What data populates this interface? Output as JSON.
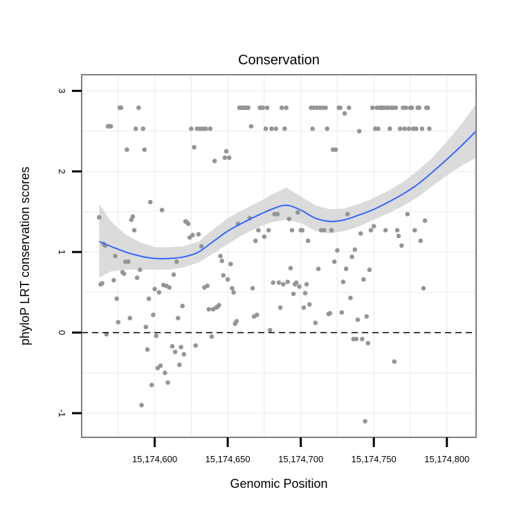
{
  "chart_data": {
    "type": "scatter",
    "title": "Conservation",
    "xlabel": "Genomic Position",
    "ylabel": "phyloP LRT conservation scores",
    "xlim": [
      15174550,
      15174820
    ],
    "ylim": [
      -1.3,
      3.2
    ],
    "x_ticks": [
      15174600,
      15174650,
      15174700,
      15174750,
      15174800
    ],
    "x_tick_labels": [
      "15,174,600",
      "15,174,650",
      "15,174,700",
      "15,174,750",
      "15,174,800"
    ],
    "y_ticks": [
      -1,
      0,
      1,
      2,
      3
    ],
    "y_tick_labels": [
      "-1",
      "0",
      "1",
      "2",
      "3"
    ],
    "reference_line": {
      "y": 0,
      "style": "dashed"
    },
    "colors": {
      "points": "#959595",
      "smooth_line": "#3366ff",
      "ribbon": "#d9d9d9",
      "frame": "#7f7f7f",
      "grid": "#f0f0f0"
    },
    "points": [
      [
        15174562,
        1.43
      ],
      [
        15174563,
        0.6
      ],
      [
        15174564,
        0.61
      ],
      [
        15174565,
        1.1
      ],
      [
        15174566,
        1.08
      ],
      [
        15174567,
        -0.02
      ],
      [
        15174568,
        2.56
      ],
      [
        15174569,
        2.56
      ],
      [
        15174570,
        2.56
      ],
      [
        15174572,
        0.65
      ],
      [
        15174573,
        0.95
      ],
      [
        15174574,
        0.42
      ],
      [
        15174575,
        0.13
      ],
      [
        15174576,
        2.79
      ],
      [
        15174577,
        2.79
      ],
      [
        15174578,
        0.75
      ],
      [
        15174579,
        0.73
      ],
      [
        15174580,
        0.88
      ],
      [
        15174581,
        2.27
      ],
      [
        15174582,
        0.88
      ],
      [
        15174583,
        0.18
      ],
      [
        15174584,
        1.4
      ],
      [
        15174585,
        1.44
      ],
      [
        15174586,
        1.27
      ],
      [
        15174587,
        2.53
      ],
      [
        15174588,
        0.68
      ],
      [
        15174589,
        2.79
      ],
      [
        15174590,
        0.78
      ],
      [
        15174591,
        -0.9
      ],
      [
        15174592,
        2.53
      ],
      [
        15174593,
        2.27
      ],
      [
        15174594,
        0.07
      ],
      [
        15174595,
        -0.21
      ],
      [
        15174596,
        0.42
      ],
      [
        15174597,
        1.62
      ],
      [
        15174598,
        -0.65
      ],
      [
        15174599,
        0.22
      ],
      [
        15174600,
        0.54
      ],
      [
        15174601,
        -0.04
      ],
      [
        15174602,
        -0.44
      ],
      [
        15174603,
        0.5
      ],
      [
        15174604,
        -0.41
      ],
      [
        15174605,
        1.52
      ],
      [
        15174606,
        0.59
      ],
      [
        15174607,
        -0.5
      ],
      [
        15174608,
        0.58
      ],
      [
        15174609,
        -0.62
      ],
      [
        15174610,
        0.56
      ],
      [
        15174612,
        -0.17
      ],
      [
        15174613,
        0.72
      ],
      [
        15174614,
        -0.24
      ],
      [
        15174615,
        0.88
      ],
      [
        15174616,
        0.18
      ],
      [
        15174617,
        -0.4
      ],
      [
        15174618,
        -0.18
      ],
      [
        15174619,
        0.33
      ],
      [
        15174620,
        -0.27
      ],
      [
        15174621,
        1.38
      ],
      [
        15174622,
        1.37
      ],
      [
        15174623,
        1.35
      ],
      [
        15174624,
        1.18
      ],
      [
        15174625,
        2.53
      ],
      [
        15174626,
        1.21
      ],
      [
        15174627,
        2.3
      ],
      [
        15174628,
        -0.16
      ],
      [
        15174629,
        2.53
      ],
      [
        15174630,
        1.22
      ],
      [
        15174631,
        2.53
      ],
      [
        15174632,
        1.07
      ],
      [
        15174633,
        2.53
      ],
      [
        15174634,
        0.56
      ],
      [
        15174635,
        2.53
      ],
      [
        15174636,
        0.58
      ],
      [
        15174637,
        0.29
      ],
      [
        15174638,
        2.53
      ],
      [
        15174639,
        -0.05
      ],
      [
        15174640,
        0.29
      ],
      [
        15174641,
        2.13
      ],
      [
        15174642,
        0.31
      ],
      [
        15174643,
        0.32
      ],
      [
        15174644,
        0.34
      ],
      [
        15174645,
        0.95
      ],
      [
        15174646,
        0.89
      ],
      [
        15174647,
        0.71
      ],
      [
        15174648,
        2.17
      ],
      [
        15174649,
        2.25
      ],
      [
        15174650,
        0.66
      ],
      [
        15174651,
        2.17
      ],
      [
        15174652,
        0.85
      ],
      [
        15174653,
        0.55
      ],
      [
        15174654,
        0.5
      ],
      [
        15174655,
        0.11
      ],
      [
        15174656,
        0.14
      ],
      [
        15174657,
        1.35
      ],
      [
        15174658,
        2.79
      ],
      [
        15174659,
        2.79
      ],
      [
        15174660,
        2.79
      ],
      [
        15174661,
        2.79
      ],
      [
        15174662,
        2.79
      ],
      [
        15174663,
        2.79
      ],
      [
        15174664,
        2.79
      ],
      [
        15174665,
        1.42
      ],
      [
        15174666,
        2.56
      ],
      [
        15174667,
        0.55
      ],
      [
        15174668,
        0.2
      ],
      [
        15174669,
        1.14
      ],
      [
        15174670,
        0.22
      ],
      [
        15174671,
        1.27
      ],
      [
        15174672,
        2.79
      ],
      [
        15174673,
        2.79
      ],
      [
        15174674,
        2.79
      ],
      [
        15174675,
        1.19
      ],
      [
        15174676,
        2.53
      ],
      [
        15174677,
        2.79
      ],
      [
        15174678,
        1.27
      ],
      [
        15174679,
        0.03
      ],
      [
        15174680,
        2.53
      ],
      [
        15174681,
        0.62
      ],
      [
        15174682,
        1.47
      ],
      [
        15174683,
        2.53
      ],
      [
        15174684,
        1.47
      ],
      [
        15174685,
        0.62
      ],
      [
        15174686,
        0.31
      ],
      [
        15174687,
        2.79
      ],
      [
        15174688,
        0.6
      ],
      [
        15174689,
        2.53
      ],
      [
        15174690,
        2.79
      ],
      [
        15174691,
        0.63
      ],
      [
        15174692,
        1.41
      ],
      [
        15174693,
        0.8
      ],
      [
        15174694,
        1.27
      ],
      [
        15174695,
        0.48
      ],
      [
        15174696,
        0.6
      ],
      [
        15174697,
        0.62
      ],
      [
        15174698,
        1.49
      ],
      [
        15174699,
        0.57
      ],
      [
        15174700,
        1.27
      ],
      [
        15174701,
        1.27
      ],
      [
        15174702,
        0.31
      ],
      [
        15174703,
        0.49
      ],
      [
        15174704,
        0.6
      ],
      [
        15174705,
        1.14
      ],
      [
        15174706,
        0.35
      ],
      [
        15174707,
        2.79
      ],
      [
        15174708,
        2.53
      ],
      [
        15174709,
        2.79
      ],
      [
        15174710,
        0.12
      ],
      [
        15174711,
        2.79
      ],
      [
        15174712,
        0.79
      ],
      [
        15174713,
        2.79
      ],
      [
        15174714,
        1.27
      ],
      [
        15174715,
        2.79
      ],
      [
        15174716,
        1.27
      ],
      [
        15174717,
        2.79
      ],
      [
        15174718,
        2.53
      ],
      [
        15174719,
        0.23
      ],
      [
        15174720,
        0.24
      ],
      [
        15174721,
        1.27
      ],
      [
        15174722,
        2.27
      ],
      [
        15174723,
        0.88
      ],
      [
        15174724,
        2.27
      ],
      [
        15174725,
        1.02
      ],
      [
        15174726,
        2.79
      ],
      [
        15174727,
        2.79
      ],
      [
        15174728,
        0.25
      ],
      [
        15174729,
        0.63
      ],
      [
        15174730,
        2.72
      ],
      [
        15174731,
        0.79
      ],
      [
        15174732,
        1.47
      ],
      [
        15174733,
        2.79
      ],
      [
        15174734,
        0.43
      ],
      [
        15174735,
        0.94
      ],
      [
        15174736,
        -0.08
      ],
      [
        15174737,
        1.03
      ],
      [
        15174738,
        -0.08
      ],
      [
        15174739,
        0.16
      ],
      [
        15174740,
        2.5
      ],
      [
        15174741,
        1.23
      ],
      [
        15174742,
        -0.08
      ],
      [
        15174743,
        0.66
      ],
      [
        15174744,
        -1.1
      ],
      [
        15174745,
        0.2
      ],
      [
        15174746,
        -0.13
      ],
      [
        15174747,
        0.78
      ],
      [
        15174748,
        1.27
      ],
      [
        15174749,
        2.79
      ],
      [
        15174750,
        1.32
      ],
      [
        15174751,
        2.53
      ],
      [
        15174752,
        2.79
      ],
      [
        15174753,
        2.53
      ],
      [
        15174754,
        2.79
      ],
      [
        15174755,
        2.79
      ],
      [
        15174756,
        2.79
      ],
      [
        15174757,
        2.79
      ],
      [
        15174758,
        1.27
      ],
      [
        15174759,
        2.79
      ],
      [
        15174760,
        2.79
      ],
      [
        15174761,
        2.53
      ],
      [
        15174762,
        2.79
      ],
      [
        15174763,
        2.79
      ],
      [
        15174764,
        -0.36
      ],
      [
        15174765,
        2.79
      ],
      [
        15174766,
        1.27
      ],
      [
        15174767,
        1.2
      ],
      [
        15174768,
        2.53
      ],
      [
        15174769,
        1.08
      ],
      [
        15174770,
        2.79
      ],
      [
        15174771,
        2.53
      ],
      [
        15174772,
        2.79
      ],
      [
        15174773,
        1.47
      ],
      [
        15174774,
        2.53
      ],
      [
        15174775,
        2.79
      ],
      [
        15174776,
        2.79
      ],
      [
        15174777,
        2.53
      ],
      [
        15174778,
        1.27
      ],
      [
        15174779,
        2.53
      ],
      [
        15174780,
        2.79
      ],
      [
        15174781,
        2.79
      ],
      [
        15174782,
        1.14
      ],
      [
        15174783,
        2.53
      ],
      [
        15174784,
        0.55
      ],
      [
        15174785,
        1.39
      ],
      [
        15174786,
        2.79
      ],
      [
        15174787,
        2.79
      ],
      [
        15174788,
        2.53
      ]
    ],
    "smooth_fit": {
      "x": [
        15174562,
        15174570,
        15174580,
        15174590,
        15174600,
        15174610,
        15174620,
        15174630,
        15174640,
        15174650,
        15174660,
        15174670,
        15174680,
        15174690,
        15174700,
        15174710,
        15174720,
        15174730,
        15174740,
        15174750,
        15174760,
        15174770,
        15174780,
        15174790,
        15174800,
        15174810,
        15174820
      ],
      "y": [
        1.13,
        1.07,
        1.0,
        0.95,
        0.92,
        0.92,
        0.94,
        1.0,
        1.13,
        1.26,
        1.36,
        1.45,
        1.53,
        1.58,
        1.52,
        1.42,
        1.38,
        1.4,
        1.46,
        1.53,
        1.62,
        1.72,
        1.84,
        1.99,
        2.15,
        2.32,
        2.5
      ],
      "lower": [
        0.68,
        0.76,
        0.78,
        0.78,
        0.78,
        0.78,
        0.81,
        0.87,
        0.98,
        1.1,
        1.21,
        1.3,
        1.37,
        1.4,
        1.36,
        1.26,
        1.23,
        1.26,
        1.32,
        1.4,
        1.48,
        1.57,
        1.68,
        1.82,
        1.95,
        2.07,
        2.17
      ],
      "upper": [
        1.6,
        1.38,
        1.22,
        1.12,
        1.06,
        1.06,
        1.07,
        1.13,
        1.28,
        1.42,
        1.52,
        1.61,
        1.71,
        1.8,
        1.69,
        1.58,
        1.53,
        1.54,
        1.6,
        1.67,
        1.76,
        1.87,
        2.01,
        2.17,
        2.37,
        2.59,
        2.84
      ]
    }
  }
}
